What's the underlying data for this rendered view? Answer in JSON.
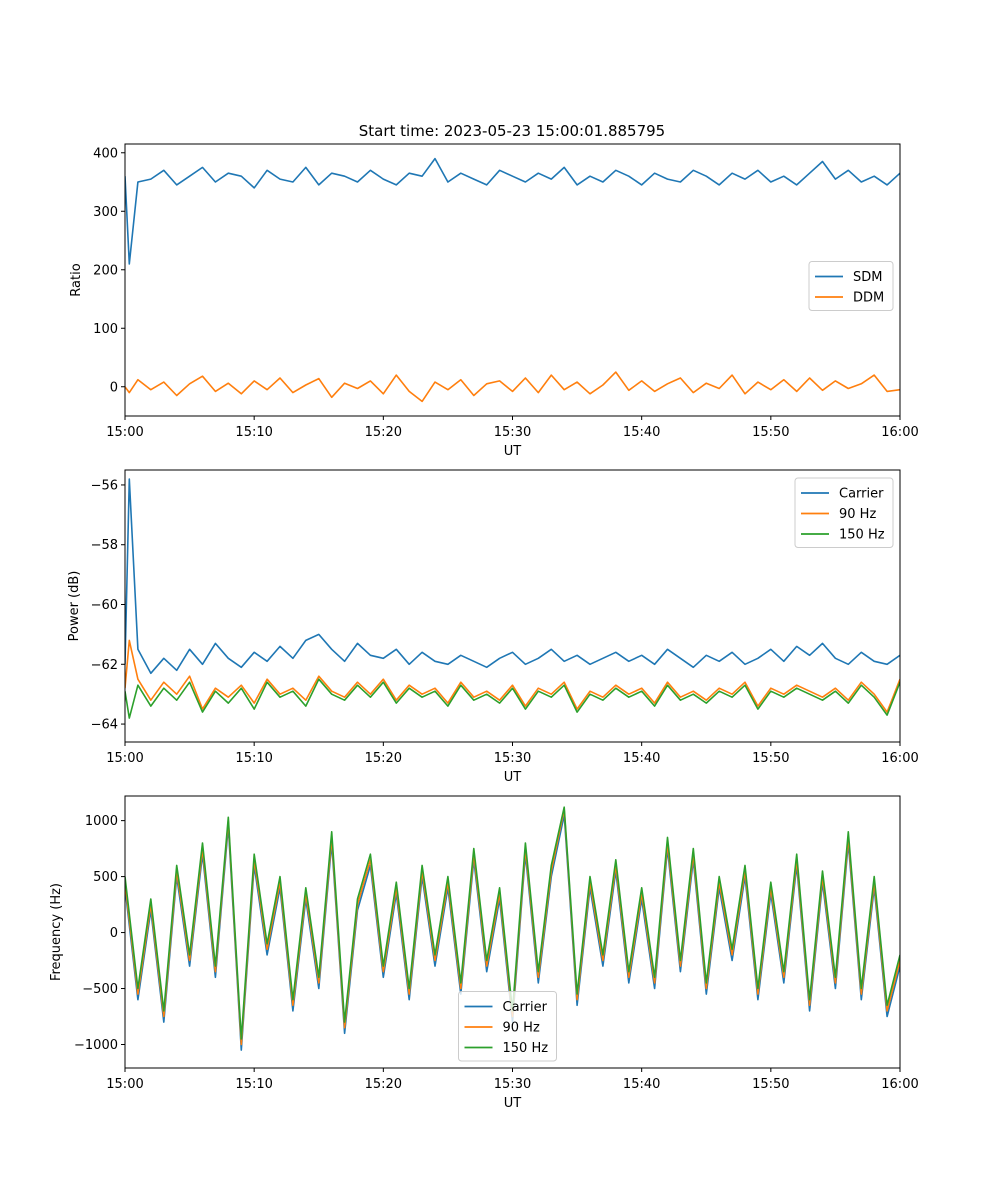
{
  "figure": {
    "title": "Start time: 2023-05-23 15:00:01.885795"
  },
  "chart_data": [
    {
      "type": "line",
      "xlabel": "UT",
      "ylabel": "Ratio",
      "xlim": [
        "15:00",
        "16:00"
      ],
      "ylim": [
        -50,
        415
      ],
      "x_ticks": [
        "15:00",
        "15:10",
        "15:20",
        "15:30",
        "15:40",
        "15:50",
        "16:00"
      ],
      "y_ticks": [
        400,
        300,
        200,
        100,
        0
      ],
      "y_tick_labels": [
        "400",
        "300",
        "200",
        "100",
        "0"
      ],
      "legend_position": "center-right",
      "grid": false,
      "x": [
        "15:00",
        "15:00:20",
        "15:01",
        "15:02",
        "15:03",
        "15:04",
        "15:05",
        "15:06",
        "15:07",
        "15:08",
        "15:09",
        "15:10",
        "15:11",
        "15:12",
        "15:13",
        "15:14",
        "15:15",
        "15:16",
        "15:17",
        "15:18",
        "15:19",
        "15:20",
        "15:21",
        "15:22",
        "15:23",
        "15:24",
        "15:25",
        "15:26",
        "15:27",
        "15:28",
        "15:29",
        "15:30",
        "15:31",
        "15:32",
        "15:33",
        "15:34",
        "15:35",
        "15:36",
        "15:37",
        "15:38",
        "15:39",
        "15:40",
        "15:41",
        "15:42",
        "15:43",
        "15:44",
        "15:45",
        "15:46",
        "15:47",
        "15:48",
        "15:49",
        "15:50",
        "15:51",
        "15:52",
        "15:53",
        "15:54",
        "15:55",
        "15:56",
        "15:57",
        "15:58",
        "15:59",
        "16:00"
      ],
      "series": [
        {
          "name": "SDM",
          "color": "#1f77b4",
          "values": [
            360,
            210,
            350,
            355,
            370,
            345,
            360,
            375,
            350,
            365,
            360,
            340,
            370,
            355,
            350,
            375,
            345,
            365,
            360,
            350,
            370,
            355,
            345,
            365,
            360,
            390,
            350,
            365,
            355,
            345,
            370,
            360,
            350,
            365,
            355,
            375,
            345,
            360,
            350,
            370,
            360,
            345,
            365,
            355,
            350,
            370,
            360,
            345,
            365,
            355,
            370,
            350,
            360,
            345,
            365,
            385,
            355,
            370,
            350,
            360,
            345,
            365
          ]
        },
        {
          "name": "DDM",
          "color": "#ff7f0e",
          "values": [
            0,
            -10,
            12,
            -5,
            8,
            -15,
            5,
            18,
            -8,
            6,
            -12,
            10,
            -5,
            15,
            -10,
            3,
            14,
            -18,
            6,
            -3,
            10,
            -12,
            20,
            -8,
            -25,
            8,
            -5,
            12,
            -15,
            5,
            10,
            -8,
            15,
            -10,
            20,
            -5,
            8,
            -12,
            3,
            25,
            -6,
            10,
            -8,
            5,
            15,
            -10,
            6,
            -3,
            20,
            -12,
            8,
            -5,
            12,
            -8,
            15,
            -6,
            10,
            -3,
            5,
            20,
            -8,
            -5
          ]
        }
      ]
    },
    {
      "type": "line",
      "xlabel": "UT",
      "ylabel": "Power (dB)",
      "xlim": [
        "15:00",
        "16:00"
      ],
      "ylim": [
        -64.6,
        -55.5
      ],
      "x_ticks": [
        "15:00",
        "15:10",
        "15:20",
        "15:30",
        "15:40",
        "15:50",
        "16:00"
      ],
      "y_ticks": [
        -56,
        -58,
        -60,
        -62,
        -64
      ],
      "y_tick_labels": [
        "−56",
        "−58",
        "−60",
        "−62",
        "−64"
      ],
      "legend_position": "top-right",
      "grid": false,
      "x": [
        "15:00",
        "15:00:20",
        "15:01",
        "15:02",
        "15:03",
        "15:04",
        "15:05",
        "15:06",
        "15:07",
        "15:08",
        "15:09",
        "15:10",
        "15:11",
        "15:12",
        "15:13",
        "15:14",
        "15:15",
        "15:16",
        "15:17",
        "15:18",
        "15:19",
        "15:20",
        "15:21",
        "15:22",
        "15:23",
        "15:24",
        "15:25",
        "15:26",
        "15:27",
        "15:28",
        "15:29",
        "15:30",
        "15:31",
        "15:32",
        "15:33",
        "15:34",
        "15:35",
        "15:36",
        "15:37",
        "15:38",
        "15:39",
        "15:40",
        "15:41",
        "15:42",
        "15:43",
        "15:44",
        "15:45",
        "15:46",
        "15:47",
        "15:48",
        "15:49",
        "15:50",
        "15:51",
        "15:52",
        "15:53",
        "15:54",
        "15:55",
        "15:56",
        "15:57",
        "15:58",
        "15:59",
        "16:00"
      ],
      "series": [
        {
          "name": "Carrier",
          "color": "#1f77b4",
          "values": [
            -62.0,
            -55.8,
            -61.5,
            -62.3,
            -61.8,
            -62.2,
            -61.5,
            -62.0,
            -61.3,
            -61.8,
            -62.1,
            -61.6,
            -61.9,
            -61.4,
            -61.8,
            -61.2,
            -61.0,
            -61.5,
            -61.9,
            -61.3,
            -61.7,
            -61.8,
            -61.5,
            -62.0,
            -61.6,
            -61.9,
            -62.0,
            -61.7,
            -61.9,
            -62.1,
            -61.8,
            -61.6,
            -62.0,
            -61.8,
            -61.5,
            -61.9,
            -61.7,
            -62.0,
            -61.8,
            -61.6,
            -61.9,
            -61.7,
            -62.0,
            -61.5,
            -61.8,
            -62.1,
            -61.7,
            -61.9,
            -61.6,
            -62.0,
            -61.8,
            -61.5,
            -61.9,
            -61.4,
            -61.7,
            -61.3,
            -61.8,
            -62.0,
            -61.6,
            -61.9,
            -62.0,
            -61.7
          ]
        },
        {
          "name": "90 Hz",
          "color": "#ff7f0e",
          "values": [
            -62.8,
            -61.2,
            -62.5,
            -63.2,
            -62.6,
            -63.0,
            -62.4,
            -63.5,
            -62.8,
            -63.1,
            -62.7,
            -63.3,
            -62.5,
            -63.0,
            -62.8,
            -63.2,
            -62.4,
            -62.9,
            -63.1,
            -62.6,
            -63.0,
            -62.5,
            -63.2,
            -62.7,
            -63.0,
            -62.8,
            -63.3,
            -62.6,
            -63.1,
            -62.9,
            -63.2,
            -62.7,
            -63.4,
            -62.8,
            -63.0,
            -62.6,
            -63.5,
            -62.9,
            -63.1,
            -62.7,
            -63.0,
            -62.8,
            -63.3,
            -62.6,
            -63.1,
            -62.9,
            -63.2,
            -62.8,
            -63.0,
            -62.6,
            -63.4,
            -62.8,
            -63.0,
            -62.7,
            -62.9,
            -63.1,
            -62.8,
            -63.2,
            -62.6,
            -63.0,
            -63.6,
            -62.5
          ]
        },
        {
          "name": "150 Hz",
          "color": "#2ca02c",
          "values": [
            -62.9,
            -63.8,
            -62.7,
            -63.4,
            -62.8,
            -63.2,
            -62.6,
            -63.6,
            -62.9,
            -63.3,
            -62.8,
            -63.5,
            -62.6,
            -63.1,
            -62.9,
            -63.4,
            -62.5,
            -63.0,
            -63.2,
            -62.7,
            -63.1,
            -62.6,
            -63.3,
            -62.8,
            -63.1,
            -62.9,
            -63.4,
            -62.7,
            -63.2,
            -63.0,
            -63.3,
            -62.8,
            -63.5,
            -62.9,
            -63.1,
            -62.7,
            -63.6,
            -63.0,
            -63.2,
            -62.8,
            -63.1,
            -62.9,
            -63.4,
            -62.7,
            -63.2,
            -63.0,
            -63.3,
            -62.9,
            -63.1,
            -62.7,
            -63.5,
            -62.9,
            -63.1,
            -62.8,
            -63.0,
            -63.2,
            -62.9,
            -63.3,
            -62.7,
            -63.1,
            -63.7,
            -62.6
          ]
        }
      ]
    },
    {
      "type": "line",
      "xlabel": "UT",
      "ylabel": "Frequency (Hz)",
      "xlim": [
        "15:00",
        "16:00"
      ],
      "ylim": [
        -1210,
        1220
      ],
      "x_ticks": [
        "15:00",
        "15:10",
        "15:20",
        "15:30",
        "15:40",
        "15:50",
        "16:00"
      ],
      "y_ticks": [
        1000,
        500,
        0,
        -500,
        -1000
      ],
      "y_tick_labels": [
        "1000",
        "500",
        "0",
        "−500",
        "−1000"
      ],
      "legend_position": "lower-center",
      "grid": false,
      "x": [
        "15:00",
        "15:01",
        "15:02",
        "15:03",
        "15:04",
        "15:05",
        "15:06",
        "15:07",
        "15:08",
        "15:09",
        "15:10",
        "15:11",
        "15:12",
        "15:13",
        "15:14",
        "15:15",
        "15:16",
        "15:17",
        "15:18",
        "15:19",
        "15:20",
        "15:21",
        "15:22",
        "15:23",
        "15:24",
        "15:25",
        "15:26",
        "15:27",
        "15:28",
        "15:29",
        "15:30",
        "15:31",
        "15:32",
        "15:33",
        "15:34",
        "15:35",
        "15:36",
        "15:37",
        "15:38",
        "15:39",
        "15:40",
        "15:41",
        "15:42",
        "15:43",
        "15:44",
        "15:45",
        "15:46",
        "15:47",
        "15:48",
        "15:49",
        "15:50",
        "15:51",
        "15:52",
        "15:53",
        "15:54",
        "15:55",
        "15:56",
        "15:57",
        "15:58",
        "15:59",
        "16:00"
      ],
      "series": [
        {
          "name": "Carrier",
          "color": "#1f77b4",
          "values": [
            400,
            -600,
            200,
            -800,
            500,
            -300,
            700,
            -400,
            950,
            -1050,
            600,
            -200,
            400,
            -700,
            300,
            -500,
            800,
            -900,
            200,
            600,
            -400,
            350,
            -600,
            500,
            -300,
            400,
            -550,
            650,
            -350,
            300,
            -800,
            700,
            -450,
            500,
            1050,
            -650,
            400,
            -300,
            550,
            -450,
            300,
            -500,
            750,
            -350,
            650,
            -550,
            400,
            -250,
            500,
            -600,
            350,
            -450,
            600,
            -700,
            450,
            -500,
            800,
            -600,
            400,
            -750,
            -300
          ]
        },
        {
          "name": "90 Hz",
          "color": "#ff7f0e",
          "values": [
            450,
            -550,
            250,
            -750,
            550,
            -250,
            750,
            -350,
            1000,
            -1000,
            650,
            -150,
            450,
            -650,
            350,
            -450,
            850,
            -850,
            250,
            650,
            -350,
            400,
            -550,
            550,
            -250,
            450,
            -500,
            700,
            -300,
            350,
            -750,
            750,
            -400,
            550,
            1100,
            -600,
            450,
            -250,
            600,
            -400,
            350,
            -450,
            800,
            -300,
            700,
            -500,
            450,
            -200,
            550,
            -550,
            400,
            -400,
            650,
            -650,
            500,
            -450,
            850,
            -550,
            450,
            -700,
            -250
          ]
        },
        {
          "name": "150 Hz",
          "color": "#2ca02c",
          "values": [
            500,
            -500,
            300,
            -700,
            600,
            -200,
            800,
            -300,
            1030,
            -950,
            700,
            -100,
            500,
            -600,
            400,
            -400,
            900,
            -800,
            300,
            700,
            -300,
            450,
            -500,
            600,
            -200,
            500,
            -450,
            750,
            -250,
            400,
            -700,
            800,
            -350,
            600,
            1120,
            -550,
            500,
            -200,
            650,
            -350,
            400,
            -400,
            850,
            -250,
            750,
            -450,
            500,
            -150,
            600,
            -500,
            450,
            -350,
            700,
            -600,
            550,
            -400,
            900,
            -500,
            500,
            -650,
            -200
          ]
        }
      ]
    }
  ]
}
